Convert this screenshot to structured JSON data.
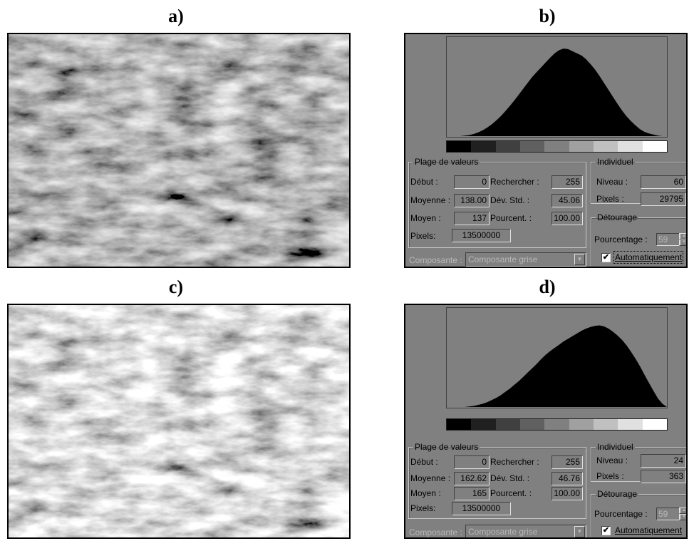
{
  "labels": {
    "a": "a)",
    "b": "b)",
    "c": "c)",
    "d": "d)"
  },
  "dialog_text": {
    "range_group": "Plage de valeurs",
    "start": "Début :",
    "search": "Rechercher :",
    "mean": "Moyenne :",
    "std": "Dév. Std. :",
    "median": "Moyen :",
    "percent": "Pourcent. :",
    "pixels_label": "Pixels:",
    "individual_group": "Individuel",
    "level": "Niveau :",
    "pixels_ind": "Pixels :",
    "clipping_group": "Détourage",
    "percentage": "Pourcentage :",
    "auto": "Automatiquement",
    "component_label": "Composante :",
    "component_value": "Composante grise"
  },
  "dialog_b": {
    "start": "0",
    "search": "255",
    "mean": "138.00",
    "std": "45.06",
    "median": "137",
    "percent": "100.00",
    "pixels": "13500000",
    "level": "60",
    "level_pixels": "29795",
    "percentage_value": "59"
  },
  "dialog_d": {
    "start": "0",
    "search": "255",
    "mean": "162.62",
    "std": "46.76",
    "median": "165",
    "percent": "100.00",
    "pixels": "13500000",
    "level": "24",
    "level_pixels": "363",
    "percentage_value": "59"
  },
  "colors": {
    "dialog_bg": "#808080",
    "histogram_fill": "#000000",
    "ramp": [
      "#000000",
      "#202020",
      "#404040",
      "#606060",
      "#808080",
      "#a0a0a0",
      "#c0c0c0",
      "#e0e0e0",
      "#ffffff"
    ]
  },
  "histogram_b": [
    0,
    0,
    0,
    0,
    1,
    2,
    4,
    7,
    11,
    16,
    22,
    29,
    37,
    46,
    56,
    66,
    77,
    88,
    99,
    110,
    119,
    128,
    137,
    146,
    154,
    160,
    163,
    162,
    158,
    154,
    150,
    143,
    134,
    124,
    112,
    99,
    86,
    73,
    60,
    48,
    37,
    28,
    20,
    13,
    8,
    5,
    3,
    1,
    0,
    0
  ],
  "histogram_d": [
    0,
    0,
    0,
    0,
    0,
    1,
    2,
    4,
    6,
    9,
    13,
    17,
    22,
    28,
    34,
    41,
    48,
    56,
    64,
    72,
    80,
    89,
    97,
    104,
    110,
    116,
    122,
    127,
    132,
    137,
    142,
    146,
    149,
    151,
    152,
    150,
    146,
    140,
    133,
    125,
    115,
    103,
    90,
    76,
    60,
    45,
    30,
    16,
    6,
    0
  ]
}
